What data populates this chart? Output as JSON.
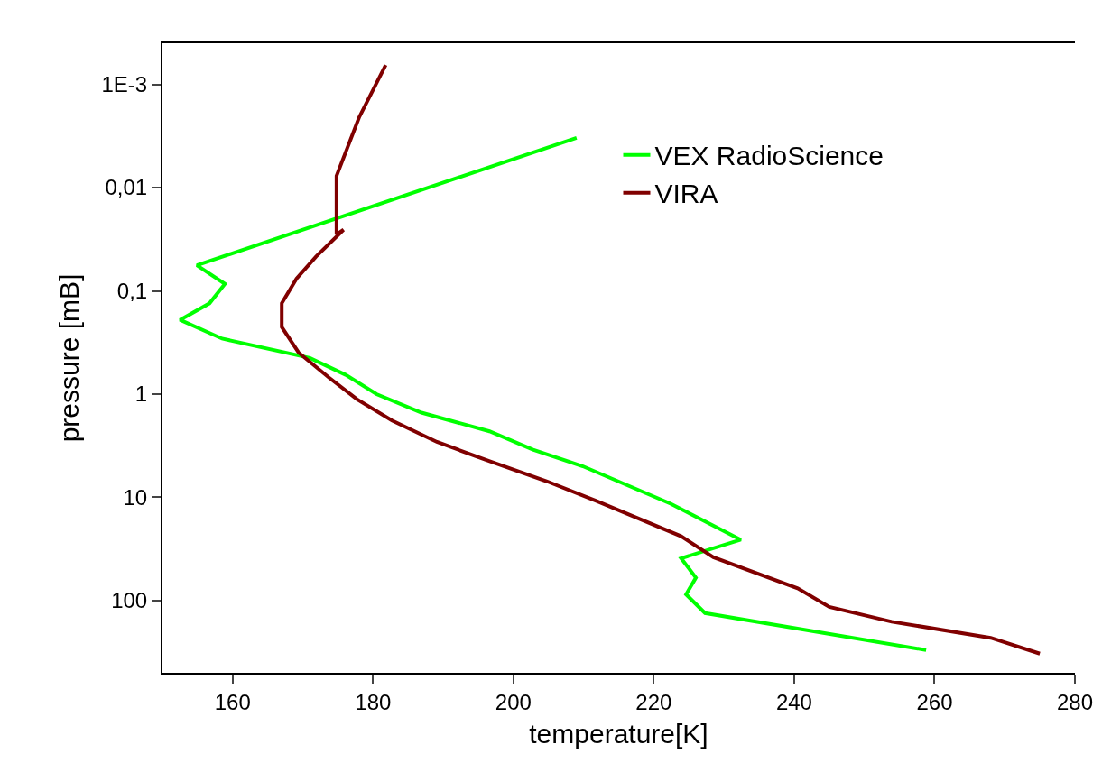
{
  "chart_data": {
    "type": "line",
    "xlabel": "temperature[K]",
    "ylabel": "pressure [mB]",
    "log": "y",
    "grid": false,
    "legend": "top right",
    "marker": "none",
    "line_style": "solid",
    "xlim": [
      150,
      280
    ],
    "xticks": [
      160,
      180,
      200,
      220,
      240,
      260,
      280
    ],
    "ylim": [
      500,
      0.0004
    ],
    "yticks": [
      {
        "value": 0.001,
        "label": "1E-3"
      },
      {
        "value": 0.01,
        "label": "0,01"
      },
      {
        "value": 0.1,
        "label": "0,1"
      },
      1,
      10,
      100
    ],
    "series": [
      {
        "name": "VEX RadioScience",
        "color": "#00ff00",
        "x": [
          209,
          154.9,
          158.9,
          156.7,
          152.5,
          158.5,
          171,
          176.1,
          180.5,
          186.9,
          196.6,
          202.8,
          209.9,
          222.4,
          232.4,
          223.9,
          226,
          224.6,
          227.3,
          258.8
        ],
        "values": [
          0.0033,
          0.0565,
          0.0855,
          0.132,
          0.191,
          0.29,
          0.446,
          0.65,
          1.0,
          1.51,
          2.29,
          3.45,
          5.0,
          11.5,
          25.7,
          38.9,
          60,
          87,
          132,
          301
        ]
      },
      {
        "name": "VIRA",
        "color": "#800000",
        "x": [
          181.8,
          178,
          174.8,
          174.8,
          175.8,
          171.9,
          169.1,
          167,
          167,
          169.4,
          173.7,
          177.7,
          182.7,
          189.1,
          195.9,
          204.8,
          211.8,
          223.9,
          228.5,
          240.5,
          245,
          253.9,
          268,
          275
        ],
        "values": [
          0.00065,
          0.0021,
          0.0077,
          0.0284,
          0.0256,
          0.0464,
          0.076,
          0.132,
          0.224,
          0.396,
          0.689,
          1.12,
          1.8,
          2.9,
          4.29,
          7.0,
          10.8,
          23.8,
          38.1,
          75.9,
          115,
          160,
          229,
          326
        ]
      }
    ]
  }
}
